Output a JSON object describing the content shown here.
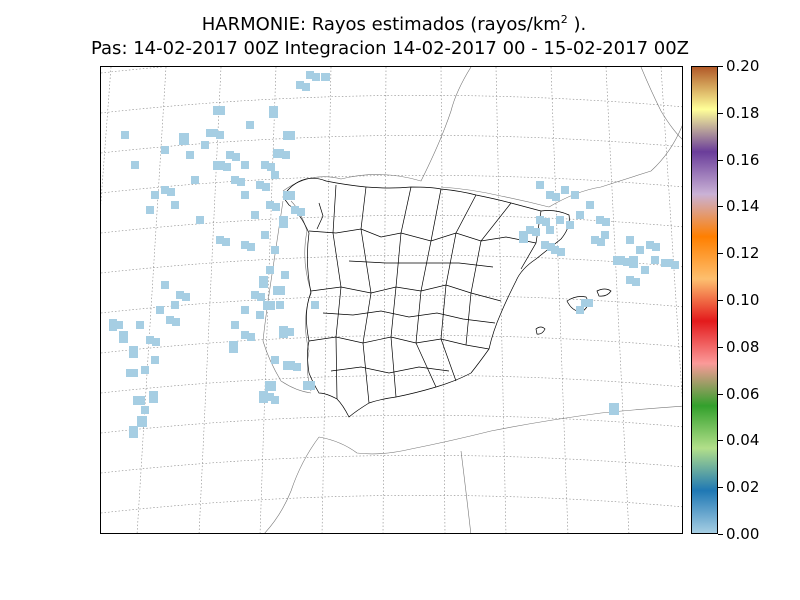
{
  "title": {
    "line1_text": "HARMONIE: Rayos estimados  (rayos/km",
    "line1_sup": "2",
    "line1_end": " ).",
    "line2": "Pas: 14-02-2017 00Z Integracion 14-02-2017 00 - 15-02-2017 00Z"
  },
  "colorbar": {
    "labels": [
      "0.20",
      "0.18",
      "0.16",
      "0.14",
      "0.12",
      "0.10",
      "0.08",
      "0.06",
      "0.04",
      "0.02",
      "0.00"
    ],
    "stops": [
      "#a6cee3",
      "#1f78b4",
      "#b2df8a",
      "#33a02c",
      "#fb9a99",
      "#e31a1c",
      "#fdbf6f",
      "#ff7f00",
      "#cab2d6",
      "#6a3d9a",
      "#ffff99",
      "#b15928"
    ]
  },
  "colors": {
    "lightning_cells": "#a6cee3",
    "boundaries": "#000000",
    "graticule": "#888888"
  }
}
